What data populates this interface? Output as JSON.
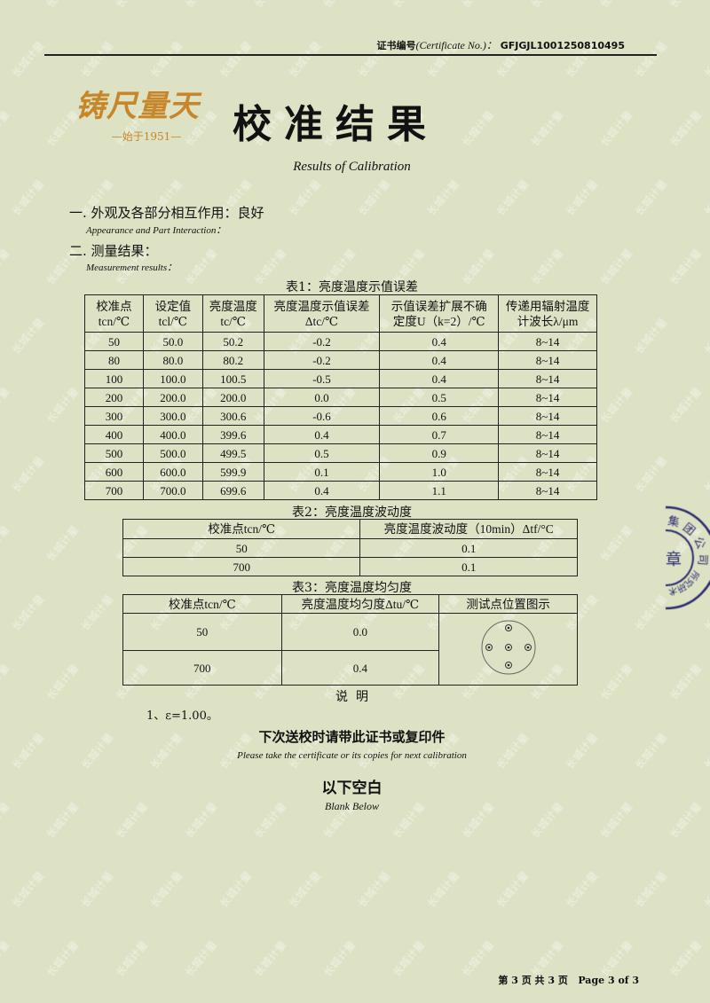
{
  "watermark": "长城计量",
  "header": {
    "cert_label": "证书编号",
    "cert_label_en": "(Certificate No.)：",
    "cert_no": "GFJGJL1001250810495"
  },
  "logo": {
    "text": "铸尺量天",
    "since": "—始于1951—",
    "color": "#c8862a"
  },
  "title": "校准结果",
  "subtitle": "Results of Calibration",
  "sections": [
    {
      "label": "一. 外观及各部分相互作用：良好",
      "en": "Appearance and Part Interaction："
    },
    {
      "label": "二. 测量结果：",
      "en": "Measurement results："
    }
  ],
  "table1": {
    "caption": "表1：亮度温度示值误差",
    "headers": [
      [
        "校准点",
        "tcn/℃"
      ],
      [
        "设定值",
        "tcl/℃"
      ],
      [
        "亮度温度",
        "tc/℃"
      ],
      [
        "亮度温度示值误差",
        "Δtc/℃"
      ],
      [
        "示值误差扩展不确",
        "定度U（k=2）/℃"
      ],
      [
        "传递用辐射温度",
        "计波长λ/μm"
      ]
    ],
    "rows": [
      [
        "50",
        "50.0",
        "50.2",
        "-0.2",
        "0.4",
        "8~14"
      ],
      [
        "80",
        "80.0",
        "80.2",
        "-0.2",
        "0.4",
        "8~14"
      ],
      [
        "100",
        "100.0",
        "100.5",
        "-0.5",
        "0.4",
        "8~14"
      ],
      [
        "200",
        "200.0",
        "200.0",
        "0.0",
        "0.5",
        "8~14"
      ],
      [
        "300",
        "300.0",
        "300.6",
        "-0.6",
        "0.6",
        "8~14"
      ],
      [
        "400",
        "400.0",
        "399.6",
        "0.4",
        "0.7",
        "8~14"
      ],
      [
        "500",
        "500.0",
        "499.5",
        "0.5",
        "0.9",
        "8~14"
      ],
      [
        "600",
        "600.0",
        "599.9",
        "0.1",
        "1.0",
        "8~14"
      ],
      [
        "700",
        "700.0",
        "699.6",
        "0.4",
        "1.1",
        "8~14"
      ]
    ]
  },
  "table2": {
    "caption": "表2：亮度温度波动度",
    "headers": [
      "校准点tcn/℃",
      "亮度温度波动度（10min）Δtf/°C"
    ],
    "rows": [
      [
        "50",
        "0.1"
      ],
      [
        "700",
        "0.1"
      ]
    ]
  },
  "table3": {
    "caption": "表3：亮度温度均匀度",
    "headers": [
      "校准点tcn/℃",
      "亮度温度均匀度Δtu/℃",
      "测试点位置图示"
    ],
    "rows": [
      [
        "50",
        "0.0"
      ],
      [
        "700",
        "0.4"
      ]
    ]
  },
  "notes": {
    "heading": "说  明",
    "items": [
      "1、ε=1.00。"
    ]
  },
  "reminder": {
    "zh": "下次送校时请带此证书或复印件",
    "en": "Please take the certificate or its copies for next calibration"
  },
  "blank": {
    "zh": "以下空白",
    "en": "Blank Below"
  },
  "footer": "第 3 页 共 3 页   Page 3 of 3",
  "stamp": {
    "outer": "集团公司",
    "center": "章",
    "inner": "术研究所",
    "color": "#2a2a6e"
  }
}
